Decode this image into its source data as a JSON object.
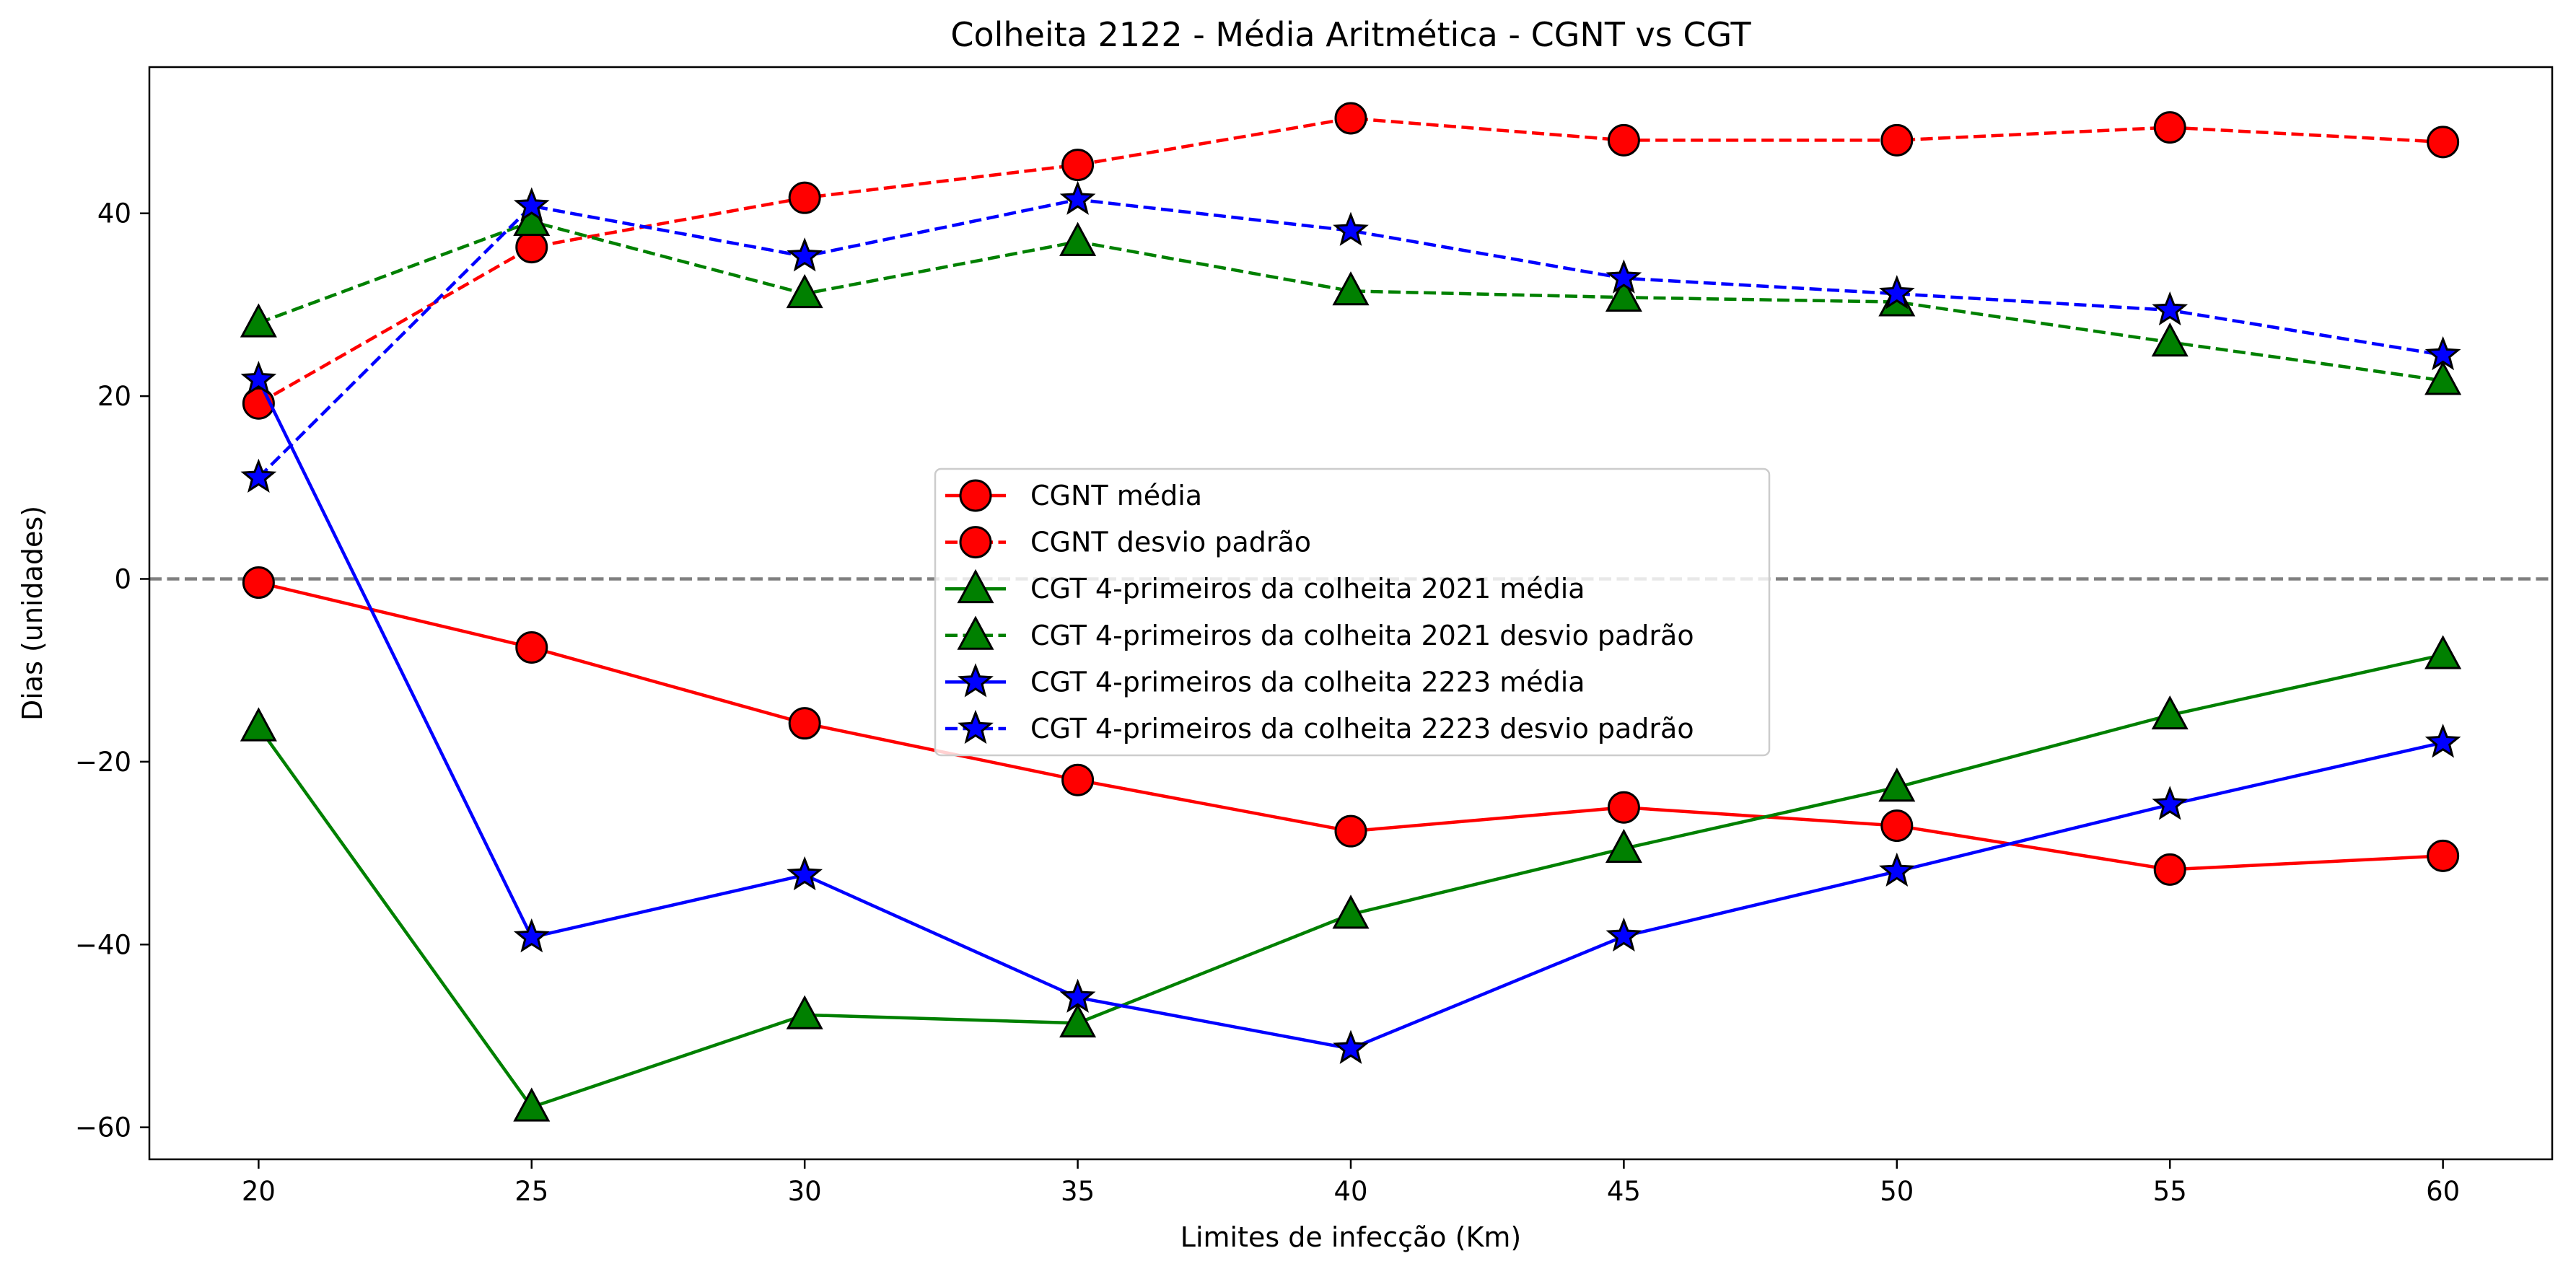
{
  "chart_data": {
    "type": "line",
    "title": "Colheita 2122 - Média Aritmética - CGNT vs CGT",
    "xlabel": "Limites de infecção (Km)",
    "ylabel": "Dias (unidades)",
    "x": [
      20,
      25,
      30,
      35,
      40,
      45,
      50,
      55,
      60
    ],
    "x_ticks": [
      "20",
      "25",
      "30",
      "35",
      "40",
      "45",
      "50",
      "55",
      "60"
    ],
    "y_ticks": [
      "−60",
      "−40",
      "−20",
      "0",
      "20",
      "40"
    ],
    "y_tick_values": [
      -60,
      -40,
      -20,
      0,
      20,
      40
    ],
    "xlim": [
      18,
      62
    ],
    "ylim": [
      -63.5,
      56.0
    ],
    "grid": false,
    "reference_line": {
      "y": 0,
      "style": "dashed",
      "color": "#808080"
    },
    "legend_position": "center",
    "series": [
      {
        "name": "CGNT média",
        "color": "#ff0000",
        "marker": "circle",
        "line": "solid",
        "values": [
          -0.4,
          -7.5,
          -15.8,
          -22.0,
          -27.6,
          -25.0,
          -27.0,
          -31.8,
          -30.3
        ]
      },
      {
        "name": "CGNT desvio padrão",
        "color": "#ff0000",
        "marker": "circle",
        "line": "dashed",
        "values": [
          19.2,
          36.3,
          41.7,
          45.3,
          50.4,
          48.0,
          48.0,
          49.4,
          47.8
        ]
      },
      {
        "name": "CGT 4-primeiros da colheita 2021 média",
        "color": "#008000",
        "marker": "triangle",
        "line": "solid",
        "values": [
          -16.2,
          -57.8,
          -47.7,
          -48.6,
          -36.7,
          -29.5,
          -22.8,
          -14.9,
          -8.3
        ]
      },
      {
        "name": "CGT 4-primeiros da colheita 2021 desvio padrão",
        "color": "#008000",
        "marker": "triangle",
        "line": "dashed",
        "values": [
          28.0,
          39.1,
          31.2,
          36.9,
          31.5,
          30.8,
          30.3,
          25.9,
          21.7
        ]
      },
      {
        "name": "CGT 4-primeiros da colheita 2223 média",
        "color": "#0000ff",
        "marker": "star",
        "line": "solid",
        "values": [
          21.8,
          -39.2,
          -32.4,
          -45.8,
          -51.4,
          -39.1,
          -32.0,
          -24.7,
          -17.9
        ]
      },
      {
        "name": "CGT 4-primeiros da colheita 2223 desvio padrão",
        "color": "#0000ff",
        "marker": "star",
        "line": "dashed",
        "values": [
          11.1,
          40.8,
          35.3,
          41.5,
          38.1,
          32.9,
          31.2,
          29.4,
          24.5
        ]
      }
    ]
  }
}
